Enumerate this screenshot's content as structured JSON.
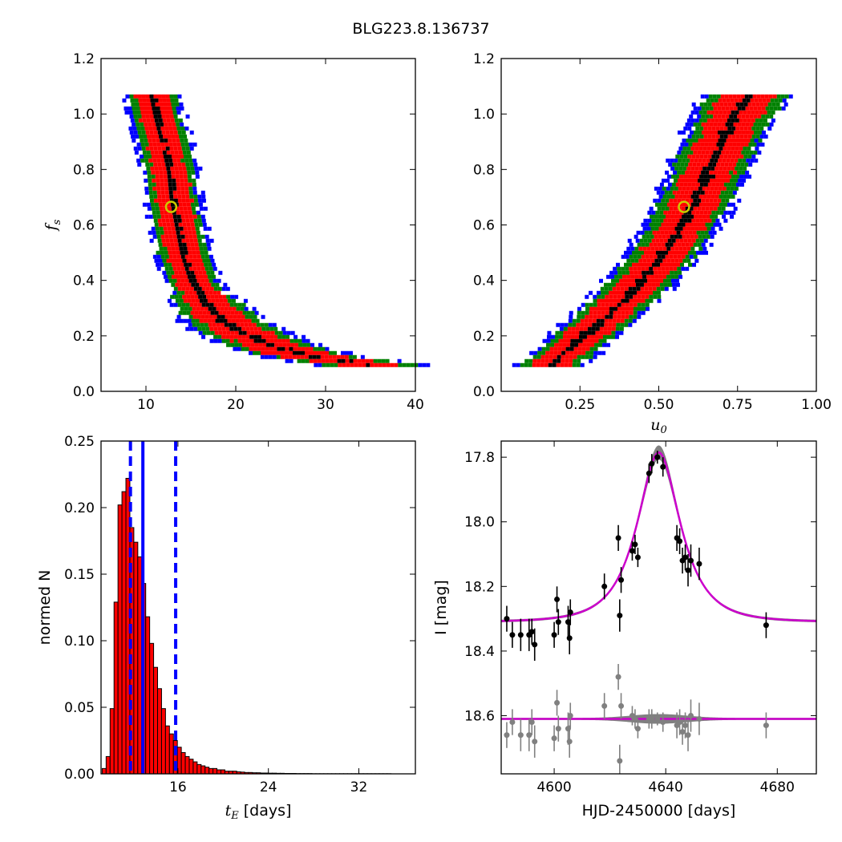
{
  "figure": {
    "suptitle": "BLG223.8.136737"
  },
  "chart_data": [
    {
      "type": "scatter",
      "panel": "top-left",
      "xlabel": "",
      "ylabel": "f",
      "ylabel_sub": "s",
      "xlim": [
        5,
        40
      ],
      "ylim": [
        0,
        1.2
      ],
      "xticks": [
        10,
        20,
        30,
        40
      ],
      "yticks": [
        0.0,
        0.2,
        0.4,
        0.6,
        0.8,
        1.0,
        1.2
      ],
      "xtick_labels": [
        "10",
        "20",
        "30",
        "40"
      ],
      "ytick_labels": [
        "0.0",
        "0.2",
        "0.4",
        "0.6",
        "0.8",
        "1.0",
        "1.2"
      ],
      "band_colors": {
        "outer": "#0000ff",
        "mid": "#008000",
        "inner": "#ff0000",
        "core": "#000000"
      },
      "ridge": [
        [
          10.5,
          1.08
        ],
        [
          11.0,
          1.0
        ],
        [
          11.8,
          0.9
        ],
        [
          12.5,
          0.8
        ],
        [
          12.8,
          0.7
        ],
        [
          13.4,
          0.6
        ],
        [
          14.0,
          0.5
        ],
        [
          15.0,
          0.4
        ],
        [
          16.5,
          0.33
        ],
        [
          18.5,
          0.26
        ],
        [
          21.0,
          0.21
        ],
        [
          24.0,
          0.17
        ],
        [
          27.0,
          0.14
        ],
        [
          31.0,
          0.12
        ],
        [
          35.0,
          0.1
        ]
      ],
      "best_fit": {
        "x": 12.8,
        "y": 0.665,
        "color": "#cccc00"
      }
    },
    {
      "type": "scatter",
      "panel": "top-right",
      "xlabel": "u",
      "xlabel_sub": "0",
      "ylabel": "",
      "xlim": [
        0,
        1.0
      ],
      "ylim": [
        0,
        1.2
      ],
      "xticks": [
        0.25,
        0.5,
        0.75,
        1.0
      ],
      "yticks": [
        0.0,
        0.2,
        0.4,
        0.6,
        0.8,
        1.0,
        1.2
      ],
      "xtick_labels": [
        "0.25",
        "0.50",
        "0.75",
        "1.00"
      ],
      "ytick_labels": [
        "0.0",
        "0.2",
        "0.4",
        "0.6",
        "0.8",
        "1.0",
        "1.2"
      ],
      "band_colors": {
        "outer": "#0000ff",
        "mid": "#008000",
        "inner": "#ff0000",
        "core": "#000000"
      },
      "ridge": [
        [
          0.15,
          0.1
        ],
        [
          0.2,
          0.15
        ],
        [
          0.27,
          0.22
        ],
        [
          0.35,
          0.3
        ],
        [
          0.42,
          0.38
        ],
        [
          0.48,
          0.46
        ],
        [
          0.53,
          0.54
        ],
        [
          0.58,
          0.63
        ],
        [
          0.62,
          0.72
        ],
        [
          0.66,
          0.82
        ],
        [
          0.7,
          0.92
        ],
        [
          0.74,
          1.01
        ],
        [
          0.78,
          1.08
        ]
      ],
      "best_fit": {
        "x": 0.58,
        "y": 0.665,
        "color": "#cccc00"
      }
    },
    {
      "type": "bar",
      "panel": "bottom-left",
      "xlabel": "t",
      "xlabel_sub": "E",
      "xlabel_unit": " [days]",
      "ylabel": "normed N",
      "xlim": [
        9.2,
        37.0
      ],
      "ylim": [
        0,
        0.25
      ],
      "xticks": [
        16,
        24,
        32
      ],
      "yticks": [
        0.0,
        0.05,
        0.1,
        0.15,
        0.2,
        0.25
      ],
      "xtick_labels": [
        "16",
        "24",
        "32"
      ],
      "ytick_labels": [
        "0.00",
        "0.05",
        "0.10",
        "0.15",
        "0.20",
        "0.25"
      ],
      "bin_start": 9.3,
      "bin_width": 0.35,
      "values": [
        0.004,
        0.013,
        0.049,
        0.129,
        0.202,
        0.212,
        0.222,
        0.185,
        0.174,
        0.163,
        0.143,
        0.118,
        0.098,
        0.08,
        0.064,
        0.049,
        0.036,
        0.03,
        0.025,
        0.02,
        0.016,
        0.013,
        0.011,
        0.009,
        0.007,
        0.006,
        0.005,
        0.004,
        0.004,
        0.003,
        0.003,
        0.002,
        0.002,
        0.002,
        0.0015,
        0.0013,
        0.001,
        0.001,
        0.0008,
        0.0008,
        0.0006,
        0.0006,
        0.0005,
        0.0005,
        0.0004,
        0.0004,
        0.0003,
        0.0003,
        0.0003,
        0.0002,
        0.0002,
        0.0002,
        0.0002,
        0.0001,
        0.0001,
        0.0001,
        0.0001,
        0.0001,
        0.0001,
        0.0001,
        0.0001,
        0.0001,
        0.0001,
        0.0001,
        0.0001,
        0.0001,
        0.0001,
        0.0001,
        0.0001,
        0.0001,
        0.0001,
        0.0001,
        0.0001
      ],
      "bar_color": "#ff0000",
      "median": 12.9,
      "lower": 11.8,
      "upper": 15.8,
      "vline_color": "#0000ff"
    },
    {
      "type": "line",
      "panel": "bottom-right",
      "xlabel": "HJD-2450000 [days]",
      "ylabel": "I [mag]",
      "xlim": [
        4581,
        4694
      ],
      "ylim": [
        18.78,
        17.75
      ],
      "xticks": [
        4600,
        4640,
        4680
      ],
      "yticks": [
        17.8,
        18.0,
        18.2,
        18.4,
        18.6
      ],
      "xtick_labels": [
        "4600",
        "4640",
        "4680"
      ],
      "ytick_labels": [
        "17.8",
        "18.0",
        "18.2",
        "18.4",
        "18.6"
      ],
      "model": {
        "t0": 4637.5,
        "tE": 12.9,
        "u0": 0.58,
        "fs": 0.665,
        "I_base": 18.31,
        "color": "#cc00cc",
        "band_color": "#808080"
      },
      "residual_offset": 18.61,
      "data_points": [
        {
          "t": 4583,
          "mag": 18.3,
          "err": 0.04,
          "res": 18.66
        },
        {
          "t": 4585,
          "mag": 18.35,
          "err": 0.04,
          "res": 18.62
        },
        {
          "t": 4588,
          "mag": 18.35,
          "err": 0.05,
          "res": 18.66
        },
        {
          "t": 4591,
          "mag": 18.35,
          "err": 0.05,
          "res": 18.66
        },
        {
          "t": 4592,
          "mag": 18.34,
          "err": 0.04,
          "res": 18.62
        },
        {
          "t": 4593,
          "mag": 18.38,
          "err": 0.05,
          "res": 18.68
        },
        {
          "t": 4600,
          "mag": 18.35,
          "err": 0.04,
          "res": 18.67
        },
        {
          "t": 4601,
          "mag": 18.24,
          "err": 0.04,
          "res": 18.56
        },
        {
          "t": 4601.5,
          "mag": 18.31,
          "err": 0.04,
          "res": 18.64
        },
        {
          "t": 4605,
          "mag": 18.31,
          "err": 0.05,
          "res": 18.64
        },
        {
          "t": 4605.5,
          "mag": 18.36,
          "err": 0.05,
          "res": 18.68
        },
        {
          "t": 4605.8,
          "mag": 18.28,
          "err": 0.04,
          "res": 18.6
        },
        {
          "t": 4618,
          "mag": 18.2,
          "err": 0.04,
          "res": 18.57
        },
        {
          "t": 4623,
          "mag": 18.05,
          "err": 0.04,
          "res": 18.48
        },
        {
          "t": 4623.5,
          "mag": 18.29,
          "err": 0.05,
          "res": 18.74
        },
        {
          "t": 4624,
          "mag": 18.18,
          "err": 0.04,
          "res": 18.57
        },
        {
          "t": 4628,
          "mag": 18.09,
          "err": 0.03,
          "res": 18.6
        },
        {
          "t": 4629,
          "mag": 18.07,
          "err": 0.03,
          "res": 18.61
        },
        {
          "t": 4630,
          "mag": 18.11,
          "err": 0.03,
          "res": 18.64
        },
        {
          "t": 4634,
          "mag": 17.85,
          "err": 0.03,
          "res": 18.61
        },
        {
          "t": 4635,
          "mag": 17.82,
          "err": 0.03,
          "res": 18.61
        },
        {
          "t": 4637,
          "mag": 17.8,
          "err": 0.02,
          "res": 18.61
        },
        {
          "t": 4639,
          "mag": 17.83,
          "err": 0.03,
          "res": 18.62
        },
        {
          "t": 4644,
          "mag": 18.05,
          "err": 0.04,
          "res": 18.63
        },
        {
          "t": 4645,
          "mag": 18.06,
          "err": 0.04,
          "res": 18.62
        },
        {
          "t": 4646,
          "mag": 18.12,
          "err": 0.04,
          "res": 18.65
        },
        {
          "t": 4647,
          "mag": 18.11,
          "err": 0.04,
          "res": 18.63
        },
        {
          "t": 4648,
          "mag": 18.15,
          "err": 0.05,
          "res": 18.66
        },
        {
          "t": 4649,
          "mag": 18.12,
          "err": 0.05,
          "res": 18.6
        },
        {
          "t": 4652,
          "mag": 18.13,
          "err": 0.05,
          "res": 18.61
        },
        {
          "t": 4676,
          "mag": 18.32,
          "err": 0.04,
          "res": 18.63
        }
      ],
      "point_color": "#000000",
      "residual_color": "#808080"
    }
  ]
}
